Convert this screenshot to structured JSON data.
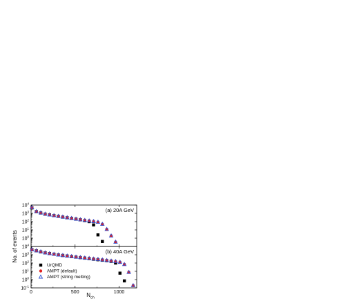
{
  "chart_data": [
    {
      "type": "scatter",
      "panel_label": "(a) 20A GeV",
      "xlabel": "N_ch",
      "ylabel": "No. of events",
      "xlim": [
        0,
        1200
      ],
      "ylim_log10": [
        -1,
        4
      ],
      "y_scale": "log",
      "x_ticks": [
        "0",
        "500",
        "1000"
      ],
      "y_ticks": [
        "10^4",
        "10^3",
        "10^2",
        "10^1",
        "10^0",
        "10^-1"
      ],
      "legend": "none",
      "series": [
        {
          "name": "UrQMD",
          "marker": "filled-square",
          "color": "#000000",
          "x": [
            10,
            60,
            110,
            160,
            210,
            260,
            310,
            360,
            410,
            460,
            510,
            560,
            610,
            660,
            710,
            760,
            810
          ],
          "y": [
            4500,
            1600,
            1100,
            800,
            650,
            530,
            430,
            350,
            290,
            240,
            200,
            165,
            130,
            100,
            40,
            2.5,
            0.4
          ]
        },
        {
          "name": "AMPT (default)",
          "marker": "filled-circle",
          "color": "#e02020",
          "x": [
            10,
            60,
            110,
            160,
            210,
            260,
            310,
            360,
            410,
            460,
            510,
            560,
            610,
            660,
            710,
            760,
            810,
            860,
            910,
            960
          ],
          "y": [
            5000,
            1700,
            1200,
            850,
            680,
            560,
            460,
            380,
            310,
            260,
            215,
            180,
            150,
            130,
            110,
            90,
            50,
            12,
            2,
            0.35
          ]
        },
        {
          "name": "AMPT (string melting)",
          "marker": "open-triangle",
          "color": "#3050d0",
          "x": [
            10,
            60,
            110,
            160,
            210,
            260,
            310,
            360,
            410,
            460,
            510,
            560,
            610,
            660,
            710,
            760,
            810,
            860,
            910,
            960
          ],
          "y": [
            5000,
            1700,
            1200,
            850,
            680,
            560,
            460,
            380,
            310,
            260,
            215,
            180,
            150,
            130,
            110,
            90,
            50,
            12,
            2,
            0.35
          ]
        }
      ]
    },
    {
      "type": "scatter",
      "panel_label": "(b) 40A GeV",
      "xlabel": "N_ch",
      "ylabel": "No. of events",
      "xlim": [
        0,
        1200
      ],
      "ylim_log10": [
        -1,
        4
      ],
      "y_scale": "log",
      "x_ticks": [
        "0",
        "500",
        "1000"
      ],
      "y_ticks": [
        "10^4",
        "10^3",
        "10^2",
        "10^1",
        "10^0",
        "10^-1"
      ],
      "legend": "lower-left",
      "series": [
        {
          "name": "UrQMD",
          "marker": "filled-square",
          "color": "#000000",
          "x": [
            10,
            60,
            110,
            160,
            210,
            260,
            310,
            360,
            410,
            460,
            510,
            560,
            610,
            660,
            710,
            760,
            810,
            860,
            910,
            960,
            1010,
            1060
          ],
          "y": [
            4000,
            3000,
            2200,
            1700,
            1400,
            1150,
            950,
            820,
            700,
            600,
            520,
            450,
            390,
            340,
            290,
            250,
            220,
            190,
            160,
            100,
            6,
            0.7
          ]
        },
        {
          "name": "AMPT (default)",
          "marker": "filled-circle",
          "color": "#e02020",
          "x": [
            10,
            60,
            110,
            160,
            210,
            260,
            310,
            360,
            410,
            460,
            510,
            560,
            610,
            660,
            710,
            760,
            810,
            860,
            910,
            960,
            1010,
            1060,
            1110,
            1160
          ],
          "y": [
            4200,
            3200,
            2400,
            1800,
            1450,
            1200,
            1000,
            860,
            740,
            640,
            560,
            490,
            430,
            380,
            330,
            290,
            250,
            215,
            185,
            160,
            130,
            70,
            8,
            0.2
          ]
        },
        {
          "name": "AMPT (string melting)",
          "marker": "open-triangle",
          "color": "#3050d0",
          "x": [
            10,
            60,
            110,
            160,
            210,
            260,
            310,
            360,
            410,
            460,
            510,
            560,
            610,
            660,
            710,
            760,
            810,
            860,
            910,
            960,
            1010,
            1060,
            1110,
            1160
          ],
          "y": [
            4200,
            3200,
            2400,
            1800,
            1450,
            1200,
            1000,
            860,
            740,
            640,
            560,
            490,
            430,
            380,
            330,
            290,
            250,
            215,
            185,
            160,
            130,
            70,
            8,
            0.2
          ]
        }
      ]
    }
  ],
  "legend_entries": [
    "UrQMD",
    "AMPT (default)",
    "AMPT (string melting)"
  ]
}
